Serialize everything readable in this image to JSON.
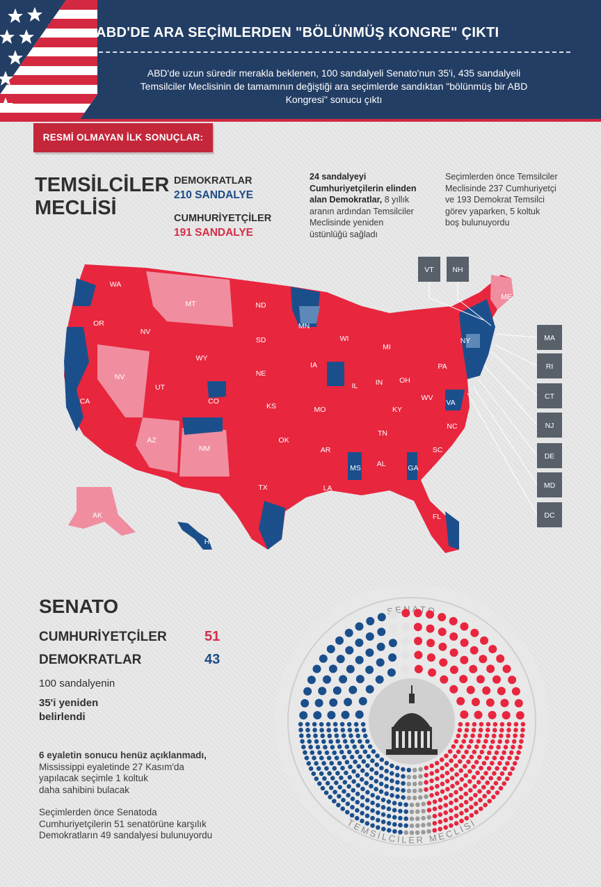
{
  "header": {
    "title": "ABD'DE ARA SEÇİMLERDEN \"BÖLÜNMÜŞ KONGRE\" ÇIKTI",
    "subtitle_lines": [
      "ABD'de uzun süredir merakla beklenen, 100 sandalyeli Senato'nun 35'i, 435 sandalyeli",
      "Temsilciler Meclisinin de tamamının değiştiği ara seçimlerde sandıktan \"bölünmüş bir ABD",
      "Kongresi\" sonucu çıktı"
    ]
  },
  "results_badge": "RESMİ OLMAYAN İLK SONUÇLAR:",
  "house": {
    "title_lines": [
      "TEMSİLCİLER",
      "MECLİSİ"
    ],
    "dem_label": "DEMOKRATLAR",
    "dem_seats": "210 SANDALYE",
    "rep_label": "CUMHURİYETÇİLER",
    "rep_seats": "191 SANDALYE",
    "note1_bold_lines": [
      "24 sandalyeyi",
      "Cumhuriyetçilerin elinden"
    ],
    "note1_mixed_bold": "alan Demokratlar,",
    "note1_mixed_rest": " 8 yıllık",
    "note1_lines": [
      "aranın ardından Temsilciler",
      "Meclisinde yeniden",
      "üstünlüğü sağladı"
    ],
    "note2_lines": [
      "Seçimlerden önce Temsilciler",
      "Meclisinde 237 Cumhuriyetçi",
      "ve 193 Demokrat Temsilci",
      "görev yaparken, 5 koltuk",
      "boş bulunuyordu"
    ]
  },
  "map": {
    "colors": {
      "rep": "#e8263e",
      "rep_light": "#f08ea0",
      "dem": "#1b4f8c",
      "dem_light": "#5d88b8",
      "callout": "#58606a"
    },
    "state_labels": [
      "WA",
      "OR",
      "NV",
      "CA",
      "MT",
      "ND",
      "SD",
      "WY",
      "NE",
      "UT",
      "NV",
      "CO",
      "KS",
      "AZ",
      "NM",
      "OK",
      "TX",
      "MN",
      "IA",
      "MO",
      "AR",
      "LA",
      "WI",
      "MI",
      "IL",
      "IN",
      "OH",
      "KY",
      "TN",
      "MS",
      "AL",
      "GA",
      "FL",
      "SC",
      "NC",
      "VA",
      "WV",
      "PA",
      "NY",
      "ME",
      "AK",
      "HI"
    ],
    "callouts": [
      "VT",
      "NH",
      "MA",
      "RI",
      "CT",
      "NJ",
      "DE",
      "MD",
      "DC",
      "ME"
    ]
  },
  "senate": {
    "title": "SENATO",
    "rep_label": "CUMHURİYETÇİLER",
    "rep_val": "51",
    "dem_label": "DEMOKRATLAR",
    "dem_val": "43",
    "line1": "100 sandalyenin",
    "line2": "35'i yeniden",
    "line3": "belirlendi",
    "note_bold": "6 eyaletin sonucu henüz açıklanmadı,",
    "note_lines": [
      "Mississippi eyaletinde 27 Kasım'da",
      "yapılacak seçimle 1 koltuk",
      "daha sahibini bulacak"
    ],
    "prev_lines": [
      "Seçimlerden önce Senatoda",
      "Cumhuriyetçilerin 51 senatörüne karşılık",
      "Demokratların 49 sandalyesi bulunuyordu"
    ]
  },
  "chamber": {
    "top_label": "SENATO",
    "bottom_label": "TEMSİLCİLER MECLİSİ",
    "senate_seats": {
      "dem": 43,
      "rep": 51,
      "undecided": 6
    },
    "house_seats": {
      "dem": 210,
      "rep": 191,
      "undecided": 34
    },
    "colors": {
      "dem": "#1b4f8c",
      "rep": "#e8263e",
      "undecided": "#9a9a9a"
    }
  }
}
